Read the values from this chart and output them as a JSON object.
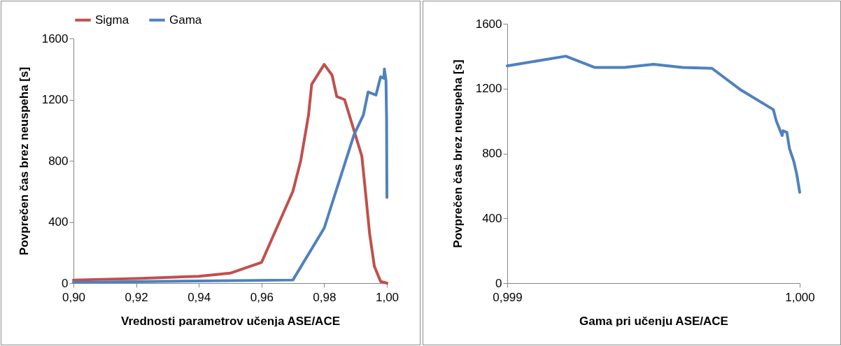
{
  "chart_data": [
    {
      "type": "line",
      "xlabel": "Vrednosti parametrov učenja ASE/ACE",
      "ylabel": "Povprečen čas brez neuspeha [s]",
      "legend": "top",
      "xlim": [
        0.9,
        1.0
      ],
      "xticks": [
        {
          "value": 0.9,
          "label": "0,90"
        },
        {
          "value": 0.92,
          "label": "0,92"
        },
        {
          "value": 0.94,
          "label": "0,94"
        },
        {
          "value": 0.96,
          "label": "0,96"
        },
        {
          "value": 0.98,
          "label": "0,98"
        },
        {
          "value": 1.0,
          "label": "1,00"
        }
      ],
      "ylim": [
        0,
        1600
      ],
      "yticks": [
        0,
        400,
        800,
        1200,
        1600
      ],
      "series": [
        {
          "name": "Sigma",
          "color": "#c0504d",
          "x": [
            0.9,
            0.92,
            0.94,
            0.95,
            0.96,
            0.97,
            0.9725,
            0.975,
            0.976,
            0.98,
            0.9825,
            0.984,
            0.9865,
            0.992,
            0.993,
            0.9945,
            0.996,
            0.998,
            1.0
          ],
          "values": [
            20,
            30,
            45,
            65,
            135,
            600,
            800,
            1100,
            1300,
            1430,
            1360,
            1220,
            1200,
            830,
            630,
            320,
            110,
            10,
            0
          ]
        },
        {
          "name": "Gama",
          "color": "#4f81bd",
          "x": [
            0.9,
            0.97,
            0.98,
            0.9895,
            0.9925,
            0.994,
            0.9965,
            0.998,
            0.999,
            0.9992,
            0.9997,
            0.9999,
            1.0
          ],
          "values": [
            5,
            20,
            360,
            970,
            1100,
            1250,
            1230,
            1350,
            1340,
            1400,
            1325,
            1070,
            560
          ]
        }
      ]
    },
    {
      "type": "line",
      "xlabel": "Gama pri učenju ASE/ACE",
      "ylabel": "Povprečen čas brez neuspeha [s]",
      "xlim": [
        0.999,
        1.0
      ],
      "xticks": [
        {
          "value": 0.999,
          "label": "0,999"
        },
        {
          "value": 1.0,
          "label": "1,000"
        }
      ],
      "ylim": [
        0,
        1600
      ],
      "yticks": [
        0,
        400,
        800,
        1200,
        1600
      ],
      "series": [
        {
          "color": "#4f81bd",
          "x": [
            0.999,
            0.9992,
            0.9993,
            0.9994,
            0.9995,
            0.9996,
            0.9997,
            0.9998,
            0.99991,
            0.99992,
            0.99994,
            0.999943,
            0.999956,
            0.999965,
            0.99998,
            0.99999,
            1.0
          ],
          "values": [
            1340,
            1400,
            1330,
            1330,
            1350,
            1330,
            1325,
            1190,
            1070,
            1000,
            910,
            940,
            930,
            830,
            750,
            670,
            560
          ]
        }
      ]
    }
  ]
}
